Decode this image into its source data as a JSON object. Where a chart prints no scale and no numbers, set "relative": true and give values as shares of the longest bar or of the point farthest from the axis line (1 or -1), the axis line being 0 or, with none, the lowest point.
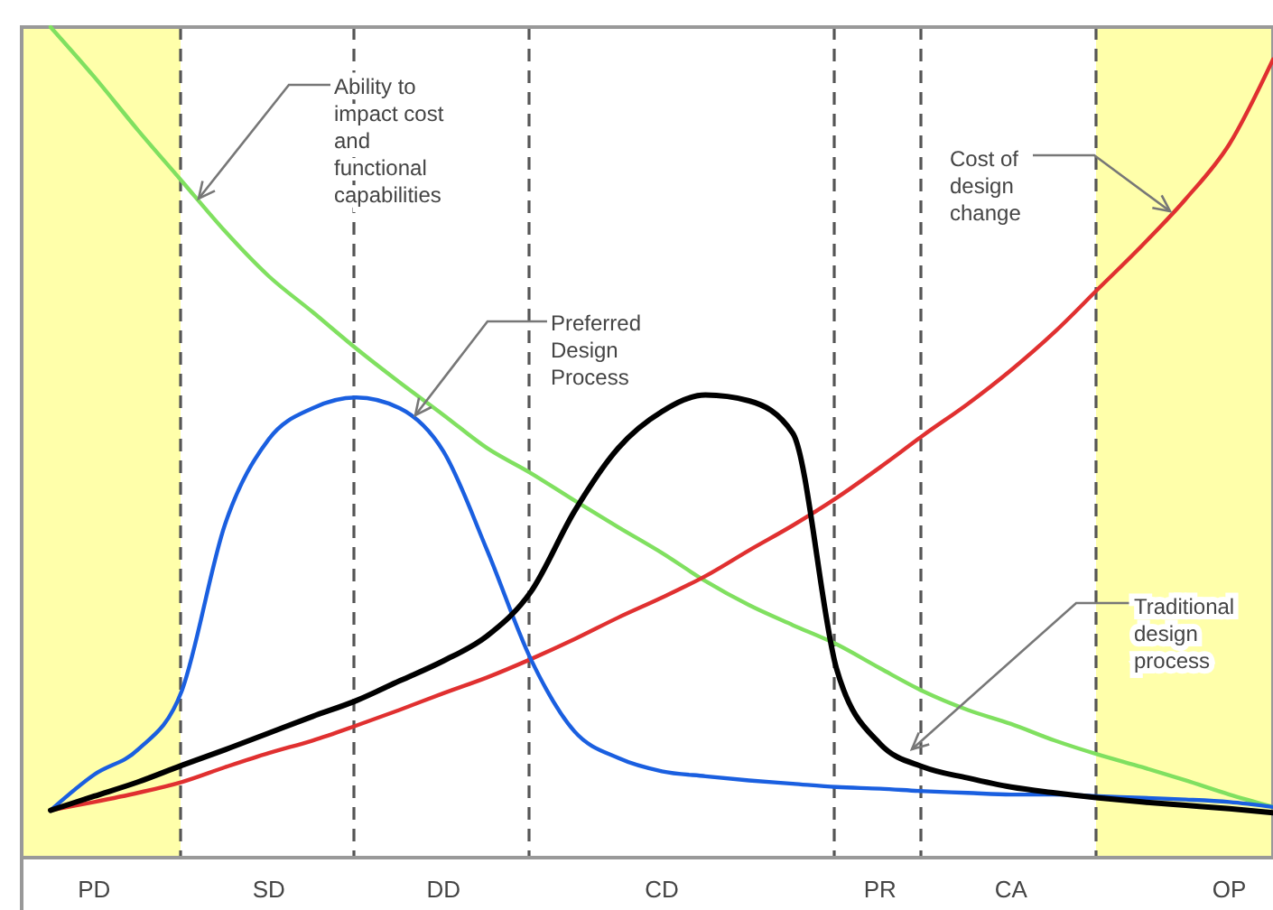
{
  "chart_data": {
    "type": "line",
    "relative": true,
    "categories": [
      null,
      "PD",
      null,
      null,
      null,
      "SD",
      null,
      null,
      null,
      "DD",
      null,
      null,
      null,
      null,
      "CD",
      null,
      null,
      null,
      null,
      "PR",
      null,
      null,
      "CA",
      null,
      null,
      null,
      null,
      "OP",
      null
    ],
    "series": [
      {
        "color": "#80e060",
        "values": [
          1.0,
          0.94,
          0.876,
          0.815,
          0.754,
          0.7,
          0.657,
          0.613,
          0.572,
          0.533,
          0.493,
          0.463,
          0.43,
          0.398,
          0.367,
          0.333,
          0.304,
          0.28,
          0.257,
          0.228,
          0.2,
          0.178,
          0.161,
          0.141,
          0.124,
          0.109,
          0.093,
          0.076,
          0.061
        ]
      },
      {
        "color": "#e03030",
        "values": [
          0.057,
          0.067,
          0.078,
          0.091,
          0.109,
          0.126,
          0.141,
          0.159,
          0.178,
          0.198,
          0.217,
          0.239,
          0.263,
          0.289,
          0.313,
          0.339,
          0.37,
          0.4,
          0.433,
          0.47,
          0.509,
          0.546,
          0.587,
          0.633,
          0.685,
          0.737,
          0.793,
          0.859,
          0.961
        ]
      },
      {
        "color": "#1a5fe0",
        "values": [
          0.057,
          0.1,
          0.13,
          0.2,
          0.402,
          0.504,
          0.541,
          0.554,
          0.541,
          0.489,
          0.37,
          0.239,
          0.152,
          0.12,
          0.104,
          0.098,
          0.093,
          0.089,
          0.085,
          0.083,
          0.08,
          0.078,
          0.076,
          0.076,
          0.074,
          0.072,
          0.07,
          0.067,
          0.061
        ]
      },
      {
        "color": "#000000",
        "values": [
          0.057,
          0.074,
          0.091,
          0.111,
          0.13,
          0.15,
          0.17,
          0.189,
          0.213,
          0.237,
          0.267,
          0.32,
          0.417,
          0.493,
          0.537,
          0.557,
          0.55,
          0.511,
          0.228,
          0.137,
          0.109,
          0.096,
          0.085,
          0.078,
          0.072,
          0.067,
          0.063,
          0.059,
          0.054
        ]
      }
    ],
    "annotations": [
      "Ability to impact cost and functional capabilities",
      "Preferred Design Process",
      "Cost of design change",
      "Traditional design process"
    ],
    "grid": "x"
  }
}
